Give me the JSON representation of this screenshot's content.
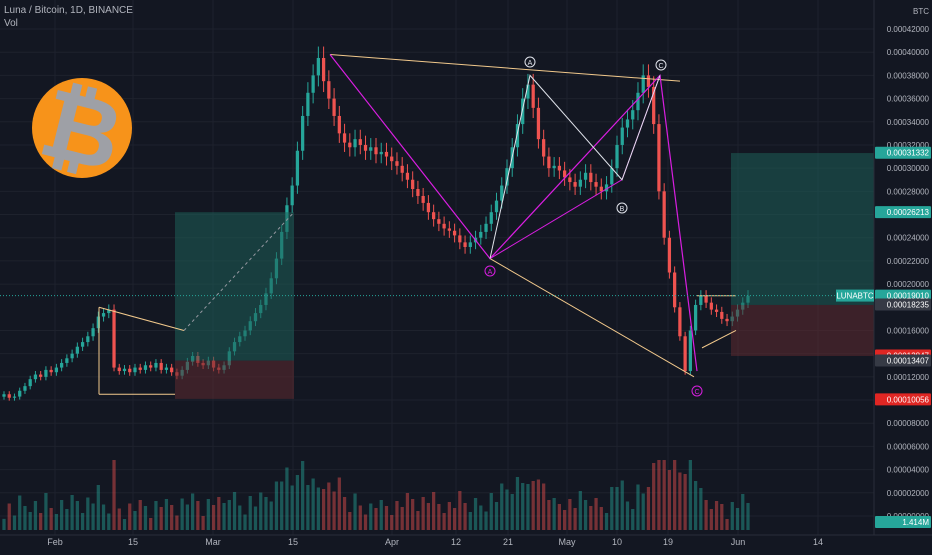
{
  "header": {
    "symbol_line": "Luna / Bitcoin, 1D, BINANCE",
    "volume_label": "Vol"
  },
  "axis": {
    "currency": "BTC"
  },
  "colors": {
    "background": "#131722",
    "up": "#26a69a",
    "down": "#ef5350",
    "pattern": "#d81ee0",
    "wave": "#e0e3eb",
    "trendline": "#f2c98c",
    "profit_zone": "#1d5e58",
    "loss_zone": "#5e2a30",
    "label_up": "#26a69a",
    "label_down": "#e02623",
    "label_current": "#26a69a",
    "label_grey": "#363a45"
  },
  "price_labels": {
    "current_symbol": "LUNABTC",
    "current": "0.00019010",
    "entry": "0.00018235",
    "tp_zone": "0.00031332",
    "tp_short": "0.00026213",
    "stop": "0.00013847",
    "entry_short": "0.00013407",
    "stop_short": "0.00010056",
    "volume": "1.414M"
  },
  "wave_labels": {
    "a_top": "A",
    "c_top": "C",
    "b": "B",
    "a_bottom": "A",
    "c_bottom": "C"
  },
  "chart_data": {
    "type": "candlestick",
    "title": "Luna / Bitcoin, 1D, BINANCE",
    "interval": "1D",
    "y_axis": {
      "unit": "BTC",
      "ticks": [
        "0.00042000",
        "0.00040000",
        "0.00038000",
        "0.00036000",
        "0.00034000",
        "0.00032000",
        "0.00030000",
        "0.00028000",
        "0.00026000",
        "0.00024000",
        "0.00022000",
        "0.00020000",
        "0.00016000",
        "0.00014000",
        "0.00012000",
        "0.00010000",
        "0.00008000",
        "0.00006000",
        "0.00004000",
        "0.00002000",
        "0.00000000"
      ],
      "range": [
        0.0,
        0.000435
      ]
    },
    "x_axis": {
      "ticks": [
        "Feb",
        "15",
        "Mar",
        "15",
        "Apr",
        "12",
        "21",
        "May",
        "10",
        "19",
        "Jun",
        "14"
      ]
    },
    "series": [
      {
        "name": "LUNABTC",
        "kind": "price"
      },
      {
        "name": "Vol",
        "kind": "volume"
      }
    ]
  }
}
